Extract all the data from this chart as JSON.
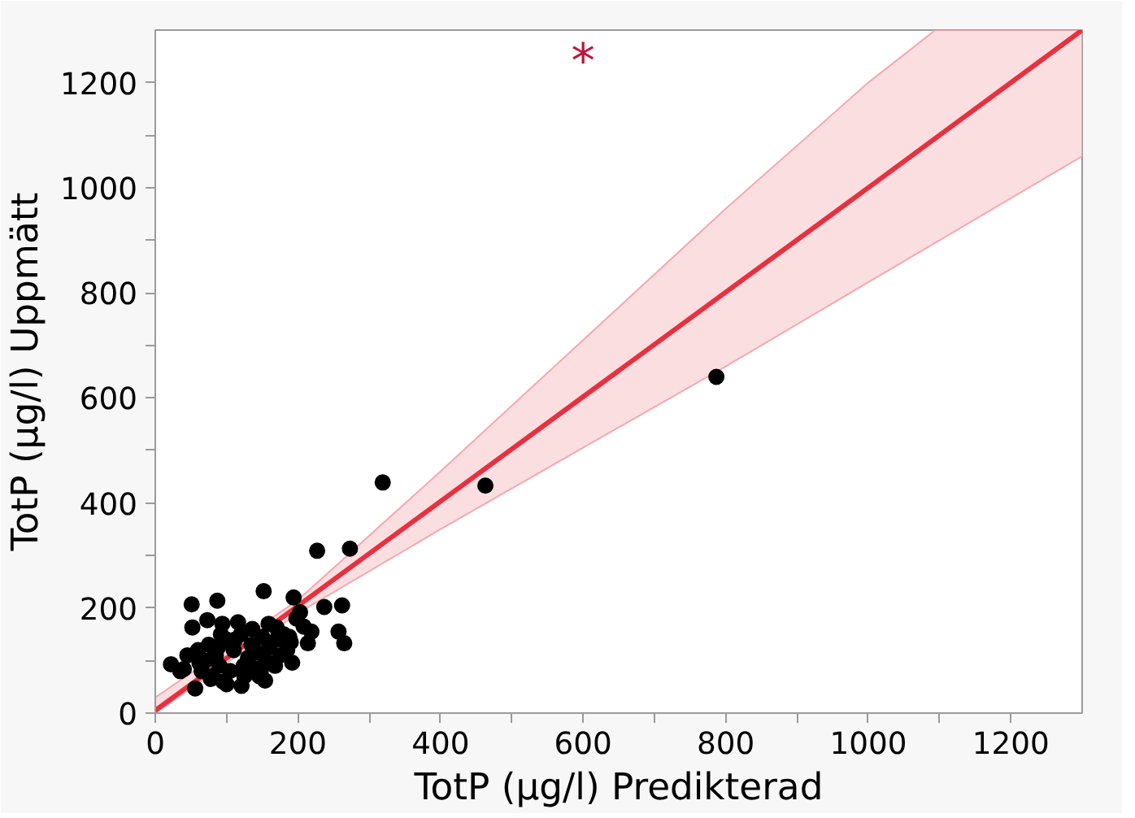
{
  "chart_data": {
    "type": "scatter",
    "xlabel": "TotP (µg/l) Predikterad",
    "ylabel": "TotP (µg/l) Uppmätt",
    "xlim": [
      0,
      1300
    ],
    "ylim": [
      0,
      1300
    ],
    "xticks": [
      0,
      {
        "value": 100,
        "label": null
      },
      200,
      {
        "value": 300,
        "label": null
      },
      400,
      {
        "value": 500,
        "label": null
      },
      600,
      {
        "value": 700,
        "label": null
      },
      800,
      {
        "value": 900,
        "label": null
      },
      1000,
      {
        "value": 1100,
        "label": null
      },
      1200
    ],
    "yticks": [
      0,
      {
        "value": 100,
        "label": null
      },
      200,
      {
        "value": 300,
        "label": null
      },
      400,
      {
        "value": 500,
        "label": null
      },
      600,
      {
        "value": 700,
        "label": null
      },
      800,
      {
        "value": 900,
        "label": null
      },
      1000,
      {
        "value": 1100,
        "label": null
      },
      1200
    ],
    "grid": false,
    "annotations": [
      "*"
    ],
    "series": [
      {
        "type": "line",
        "color": "#e8303f",
        "marker": "none",
        "line_style": "solid",
        "x": [
          0,
          200,
          400,
          600,
          800,
          1000,
          1094,
          1300
        ],
        "values": [
          5,
          204,
          403,
          602,
          801,
          1000,
          1094,
          1300
        ],
        "lower": [
          0,
          190,
          350,
          505,
          660,
          820,
          895,
          1060
        ],
        "upper": [
          30,
          215,
          460,
          710,
          960,
          1200,
          1300,
          1300
        ]
      },
      {
        "color": "#000000",
        "marker": "circle",
        "x": [
          51,
          87,
          73,
          52,
          22,
          40,
          56,
          121,
          154,
          152,
          194,
          203,
          227,
          273,
          319,
          463,
          787,
          237,
          262,
          257,
          265,
          192,
          219,
          214,
          170,
          159,
          94,
          116,
          60,
          65,
          70,
          75,
          80,
          85,
          90,
          95,
          100,
          105,
          110,
          120,
          125,
          130,
          135,
          140,
          145,
          150,
          155,
          160,
          170,
          175,
          180,
          185,
          190,
          62,
          78,
          88,
          148,
          168,
          188,
          45,
          35,
          100,
          112,
          124,
          136,
          146,
          208,
          198,
          92
        ],
        "values": [
          207,
          214,
          177,
          163,
          93,
          84,
          47,
          52,
          62,
          232,
          220,
          192,
          309,
          313,
          439,
          433,
          640,
          202,
          205,
          155,
          133,
          96,
          155,
          133,
          163,
          170,
          170,
          173,
          120,
          80,
          100,
          130,
          70,
          110,
          90,
          60,
          140,
          80,
          120,
          150,
          70,
          105,
          130,
          85,
          115,
          145,
          100,
          125,
          140,
          110,
          150,
          120,
          135,
          95,
          65,
          125,
          80,
          90,
          145,
          110,
          80,
          55,
          140,
          90,
          160,
          70,
          165,
          180,
          150
        ]
      }
    ]
  }
}
